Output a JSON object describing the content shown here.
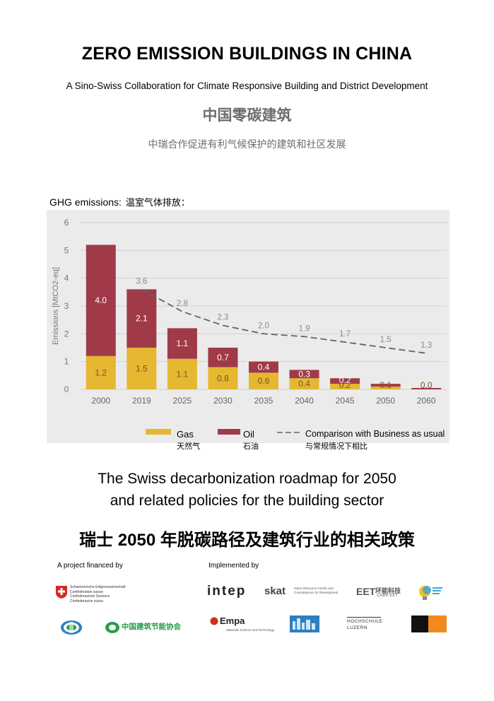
{
  "header": {
    "title": "ZERO EMISSION BUILDINGS IN CHINA",
    "subtitle": "A Sino-Swiss Collaboration for Climate Responsive Building and District Development",
    "title_cn": "中国零碳建筑",
    "subtitle_cn": "中瑞合作促进有利气候保护的建筑和社区发展"
  },
  "chart_heading": {
    "en": "GHG emissions:",
    "cn": "温室气体排放："
  },
  "chart_data": {
    "type": "bar",
    "stacked": true,
    "ylabel": "Emissions [MtCO2-eq]",
    "ylim": [
      0,
      6
    ],
    "yticks": [
      "0",
      "1",
      "2",
      "3",
      "4",
      "5",
      "6"
    ],
    "categories": [
      "2000",
      "2019",
      "2025",
      "2030",
      "2035",
      "2040",
      "2045",
      "2050",
      "2060"
    ],
    "series": [
      {
        "name": "Gas",
        "color": "#e6b731",
        "values": [
          1.2,
          1.5,
          1.1,
          0.8,
          0.6,
          0.4,
          0.2,
          0.1,
          0.0
        ],
        "labels": [
          "1.2",
          "1.5",
          "1.1",
          "0.8",
          "0.6",
          "0.4",
          "0.2",
          "0.1",
          "0.0"
        ]
      },
      {
        "name": "Oil",
        "color": "#a03a48",
        "values": [
          4.0,
          2.1,
          1.1,
          0.7,
          0.4,
          0.3,
          0.2,
          0.1,
          0.05
        ],
        "labels": [
          "4.0",
          "2.1",
          "1.1",
          "0.7",
          "0.4",
          "0.3",
          "0.2",
          "",
          ""
        ]
      }
    ],
    "comparison": {
      "name": "Comparison with Business as usual",
      "color": "#5a6570",
      "categories": [
        "2019",
        "2025",
        "2030",
        "2035",
        "2040",
        "2045",
        "2050",
        "2060"
      ],
      "values": [
        3.6,
        2.8,
        2.3,
        2.0,
        1.9,
        1.7,
        1.5,
        1.3
      ],
      "labels": [
        "3.6",
        "2.8",
        "2.3",
        "2.0",
        "1.9",
        "1.7",
        "1.5",
        "1.3"
      ]
    },
    "grid": true,
    "legend_position": "bottom"
  },
  "legend": {
    "gas": {
      "en": "Gas",
      "cn": "天然气"
    },
    "oil": {
      "en": "Oil",
      "cn": "石油"
    },
    "comparison": {
      "en": "Comparison with Business as usual",
      "cn": "与常规情况下相比"
    }
  },
  "roadmap": {
    "line1": "The Swiss decarbonization roadmap for 2050",
    "line2": "and related policies for the building sector",
    "cn": "瑞士 2050 年脱碳路径及建筑行业的相关政策"
  },
  "footer": {
    "financed_label": "A project financed by",
    "implemented_label": "Implemented by",
    "swiss_confed": [
      "Schweizerische Eidgenossenschaft",
      "Confédération suisse",
      "Confederazione Svizzera",
      "Confederaziun svizra"
    ],
    "cn_assoc": "中国建筑节能协会",
    "intep": "intep",
    "skat": "skat",
    "skat_sub": [
      "Swiss Resource Centre and",
      "Consultancies for Development"
    ],
    "eet": "EET",
    "eet_cn": "环能科技",
    "eet_sub": "CABR EET",
    "empa": "Empa",
    "empa_sub": "Materials Science and Technology",
    "hochschule": [
      "HOCHSCHULE",
      "LUZERN"
    ],
    "logo_colors": {
      "swiss_red": "#d52b1e",
      "green": "#2a9d4a",
      "orange": "#f08a1d",
      "blue": "#2c7fc0"
    }
  }
}
